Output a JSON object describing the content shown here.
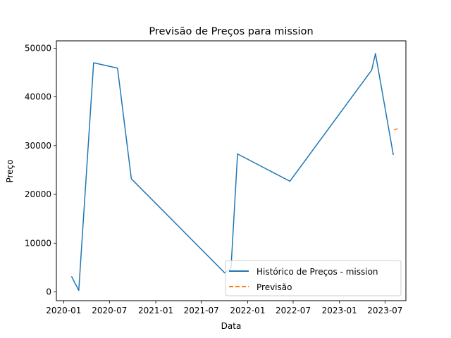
{
  "chart_data": {
    "type": "line",
    "title": "Previsão de Preços para mission",
    "xlabel": "Data",
    "ylabel": "Preço",
    "x_ticks": [
      "2020-01",
      "2020-07",
      "2021-01",
      "2021-07",
      "2022-01",
      "2022-07",
      "2023-01",
      "2023-07"
    ],
    "y_ticks": [
      0,
      10000,
      20000,
      30000,
      40000,
      50000
    ],
    "ylim": [
      -1800,
      51500
    ],
    "xlim": [
      "2019-12-03",
      "2023-09-22"
    ],
    "grid": false,
    "legend_position": "lower-right",
    "series": [
      {
        "name": "Histórico de Preços - mission",
        "color": "#1f77b4",
        "style": "solid",
        "points": [
          {
            "x": "2020-02-01",
            "y": 3200
          },
          {
            "x": "2020-03-01",
            "y": 300
          },
          {
            "x": "2020-04-29",
            "y": 47000
          },
          {
            "x": "2020-08-02",
            "y": 45900
          },
          {
            "x": "2020-09-26",
            "y": 23200
          },
          {
            "x": "2021-10-02",
            "y": 3900
          },
          {
            "x": "2021-10-27",
            "y": 4900
          },
          {
            "x": "2021-11-22",
            "y": 28300
          },
          {
            "x": "2022-06-18",
            "y": 22700
          },
          {
            "x": "2023-05-09",
            "y": 45500
          },
          {
            "x": "2023-05-24",
            "y": 48900
          },
          {
            "x": "2023-08-03",
            "y": 28100
          }
        ]
      },
      {
        "name": "Previsão",
        "color": "#ff7f0e",
        "style": "dashed",
        "points": [
          {
            "x": "2023-08-05",
            "y": 33300
          },
          {
            "x": "2023-08-25",
            "y": 33500
          }
        ]
      }
    ]
  }
}
